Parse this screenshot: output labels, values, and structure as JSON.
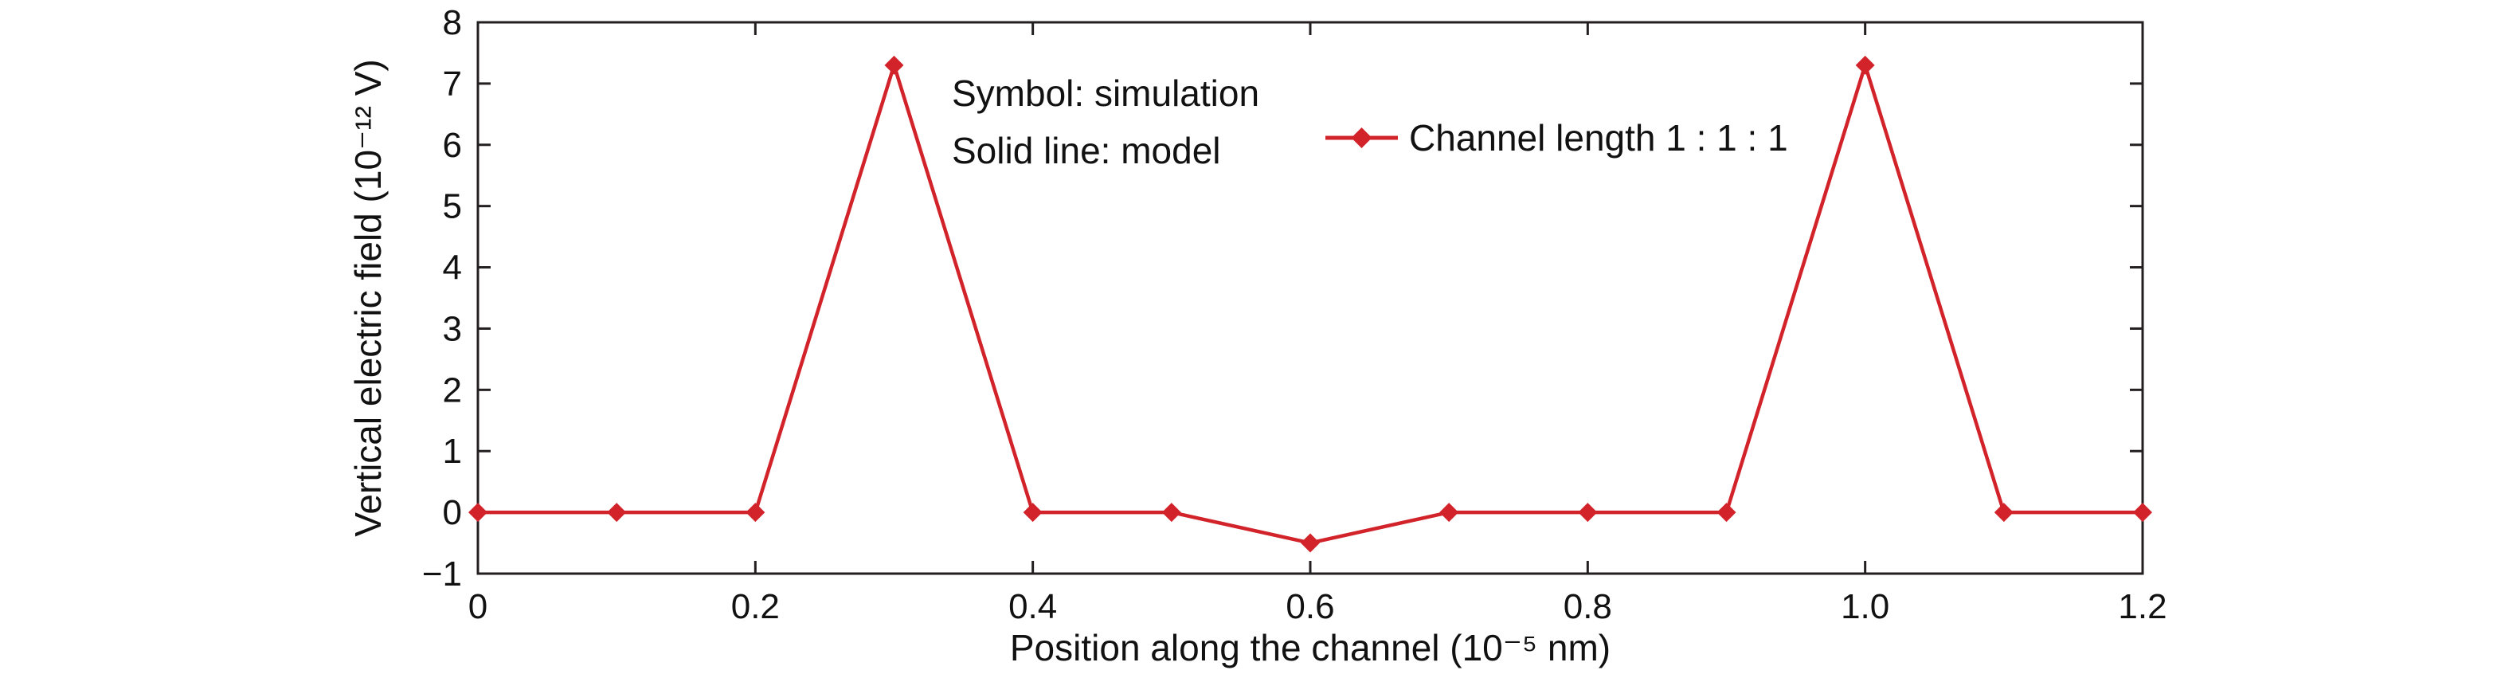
{
  "accent_color": "#d2232a",
  "chart_data": {
    "type": "line",
    "title": "",
    "xlabel": "Position along the channel (10⁻⁵ nm)",
    "ylabel": "Vertical electric field (10⁻¹² V)",
    "x": [
      0,
      0.1,
      0.2,
      0.3,
      0.4,
      0.5,
      0.6,
      0.7,
      0.8,
      0.9,
      1.0,
      1.1,
      1.2
    ],
    "series": [
      {
        "name": "Channel length 1 : 1 : 1",
        "color": "#d2232a",
        "marker": "diamond",
        "values": [
          0,
          0,
          0,
          7.3,
          0,
          0,
          -0.5,
          0,
          0,
          0,
          7.3,
          0,
          0
        ]
      }
    ],
    "xlim": [
      0,
      1.2
    ],
    "ylim": [
      -1,
      8
    ],
    "xticks": [
      0,
      0.2,
      0.4,
      0.6,
      0.8,
      1.0,
      1.2
    ],
    "xtick_labels": [
      "0",
      "0.2",
      "0.4",
      "0.6",
      "0.8",
      "1.0",
      "1.2"
    ],
    "yticks": [
      -1,
      0,
      1,
      2,
      3,
      4,
      5,
      6,
      7,
      8
    ],
    "ytick_labels": [
      "−1",
      "0",
      "1",
      "2",
      "3",
      "4",
      "5",
      "6",
      "7",
      "8"
    ],
    "grid": false,
    "legend": {
      "position": "inside-top-right",
      "entries": [
        "Channel length 1 : 1 : 1"
      ]
    },
    "annotations": [
      {
        "text": "Symbol: simulation"
      },
      {
        "text": "Solid line: model"
      }
    ]
  }
}
